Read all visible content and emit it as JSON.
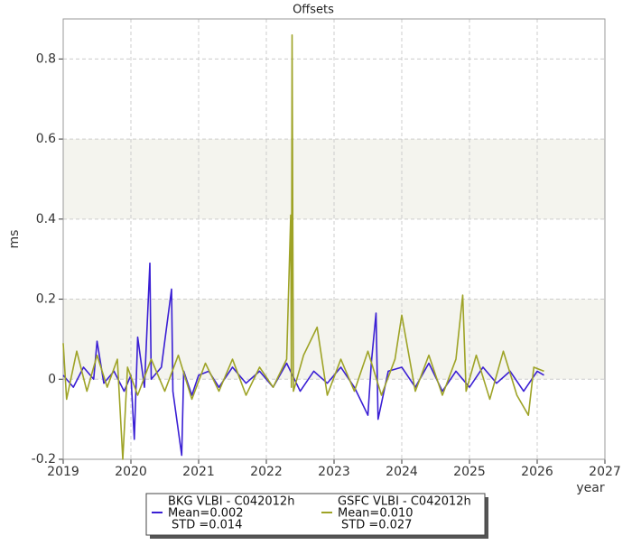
{
  "chart_data": {
    "type": "line",
    "title": "Offsets",
    "x_label": "year",
    "y_label": "ms",
    "xlim": [
      2019,
      2027
    ],
    "xticks": [
      2019,
      2020,
      2021,
      2022,
      2023,
      2024,
      2025,
      2026,
      2027
    ],
    "ylim": [
      -0.2,
      0.9
    ],
    "yticks": [
      -0.2,
      0,
      0.2,
      0.4,
      0.6,
      0.8
    ],
    "grid": true,
    "series": [
      {
        "name": "BKG VLBI - C042012h",
        "color": "#3a1fd4",
        "stats": [
          "Mean=0.002",
          "STD =0.014"
        ],
        "x": [
          2019.0,
          2019.15,
          2019.3,
          2019.45,
          2019.5,
          2019.6,
          2019.75,
          2019.9,
          2020.0,
          2020.05,
          2020.1,
          2020.2,
          2020.28,
          2020.3,
          2020.45,
          2020.6,
          2020.62,
          2020.75,
          2020.78,
          2020.9,
          2021.0,
          2021.15,
          2021.3,
          2021.5,
          2021.7,
          2021.9,
          2022.1,
          2022.3,
          2022.5,
          2022.7,
          2022.9,
          2023.1,
          2023.3,
          2023.5,
          2023.55,
          2023.62,
          2023.65,
          2023.8,
          2024.0,
          2024.2,
          2024.4,
          2024.6,
          2024.8,
          2025.0,
          2025.2,
          2025.4,
          2025.6,
          2025.8,
          2026.0,
          2026.1
        ],
        "values": [
          0.01,
          -0.02,
          0.03,
          0.0,
          0.095,
          -0.01,
          0.02,
          -0.03,
          0.01,
          -0.15,
          0.105,
          -0.02,
          0.29,
          0.0,
          0.03,
          0.225,
          -0.03,
          -0.19,
          0.02,
          -0.04,
          0.01,
          0.02,
          -0.02,
          0.03,
          -0.01,
          0.02,
          -0.02,
          0.04,
          -0.03,
          0.02,
          -0.01,
          0.03,
          -0.02,
          -0.09,
          0.04,
          0.165,
          -0.1,
          0.02,
          0.03,
          -0.02,
          0.04,
          -0.03,
          0.02,
          -0.02,
          0.03,
          -0.01,
          0.02,
          -0.03,
          0.02,
          0.01
        ]
      },
      {
        "name": "GSFC VLBI - C042012h",
        "color": "#9ea326",
        "stats": [
          "Mean=0.010",
          "STD =0.027"
        ],
        "x": [
          2019.0,
          2019.05,
          2019.2,
          2019.35,
          2019.5,
          2019.65,
          2019.8,
          2019.88,
          2019.95,
          2020.1,
          2020.3,
          2020.5,
          2020.7,
          2020.9,
          2021.1,
          2021.3,
          2021.5,
          2021.7,
          2021.9,
          2022.1,
          2022.3,
          2022.36,
          2022.37,
          2022.38,
          2022.4,
          2022.55,
          2022.75,
          2022.9,
          2023.1,
          2023.3,
          2023.5,
          2023.7,
          2023.9,
          2024.0,
          2024.2,
          2024.4,
          2024.6,
          2024.8,
          2024.9,
          2024.95,
          2025.1,
          2025.3,
          2025.5,
          2025.7,
          2025.87,
          2025.95,
          2026.1
        ],
        "values": [
          0.09,
          -0.05,
          0.07,
          -0.03,
          0.06,
          -0.02,
          0.05,
          -0.2,
          0.03,
          -0.04,
          0.05,
          -0.03,
          0.06,
          -0.05,
          0.04,
          -0.03,
          0.05,
          -0.04,
          0.03,
          -0.02,
          0.05,
          0.41,
          -0.02,
          0.86,
          -0.03,
          0.06,
          0.13,
          -0.04,
          0.05,
          -0.03,
          0.07,
          -0.04,
          0.05,
          0.16,
          -0.03,
          0.06,
          -0.04,
          0.05,
          0.21,
          -0.03,
          0.06,
          -0.05,
          0.07,
          -0.04,
          -0.09,
          0.03,
          0.02
        ]
      }
    ]
  }
}
